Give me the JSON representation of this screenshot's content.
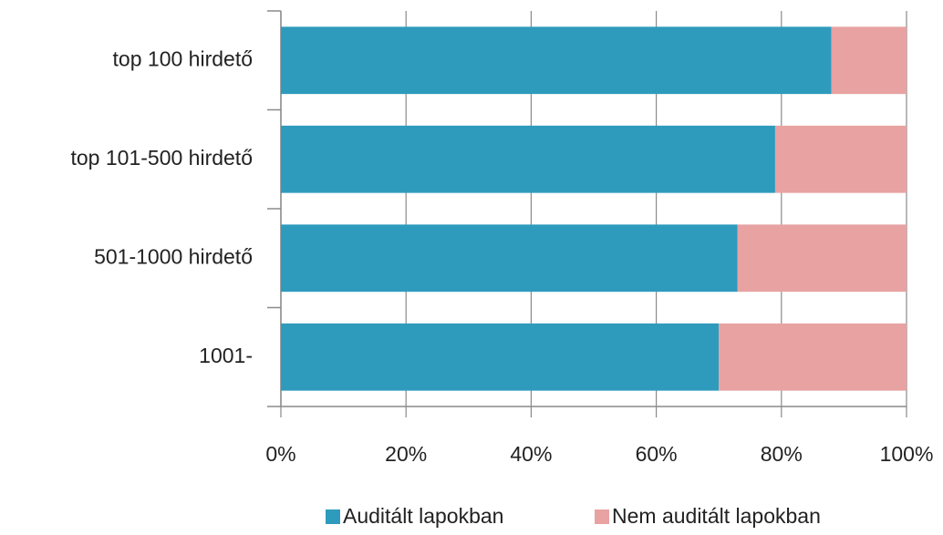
{
  "chart_data": {
    "type": "stacked-barh",
    "categories": [
      "top 100 hirdető",
      "top 101-500 hirdető",
      "501-1000 hirdető",
      "1001-"
    ],
    "series": [
      {
        "name": "Auditált lapokban",
        "color": "#2e9bbd",
        "values": [
          88,
          79,
          73,
          70
        ]
      },
      {
        "name": "Nem auditált  lapokban",
        "color": "#e8a2a2",
        "values": [
          12,
          21,
          27,
          30
        ]
      }
    ],
    "xlim": [
      0,
      100
    ],
    "xticks": [
      {
        "value": 0,
        "label": "0%"
      },
      {
        "value": 20,
        "label": "20%"
      },
      {
        "value": 40,
        "label": "40%"
      },
      {
        "value": 60,
        "label": "60%"
      },
      {
        "value": 80,
        "label": "80%"
      },
      {
        "value": 100,
        "label": "100%"
      }
    ],
    "grid": true,
    "legend": "bottom"
  }
}
